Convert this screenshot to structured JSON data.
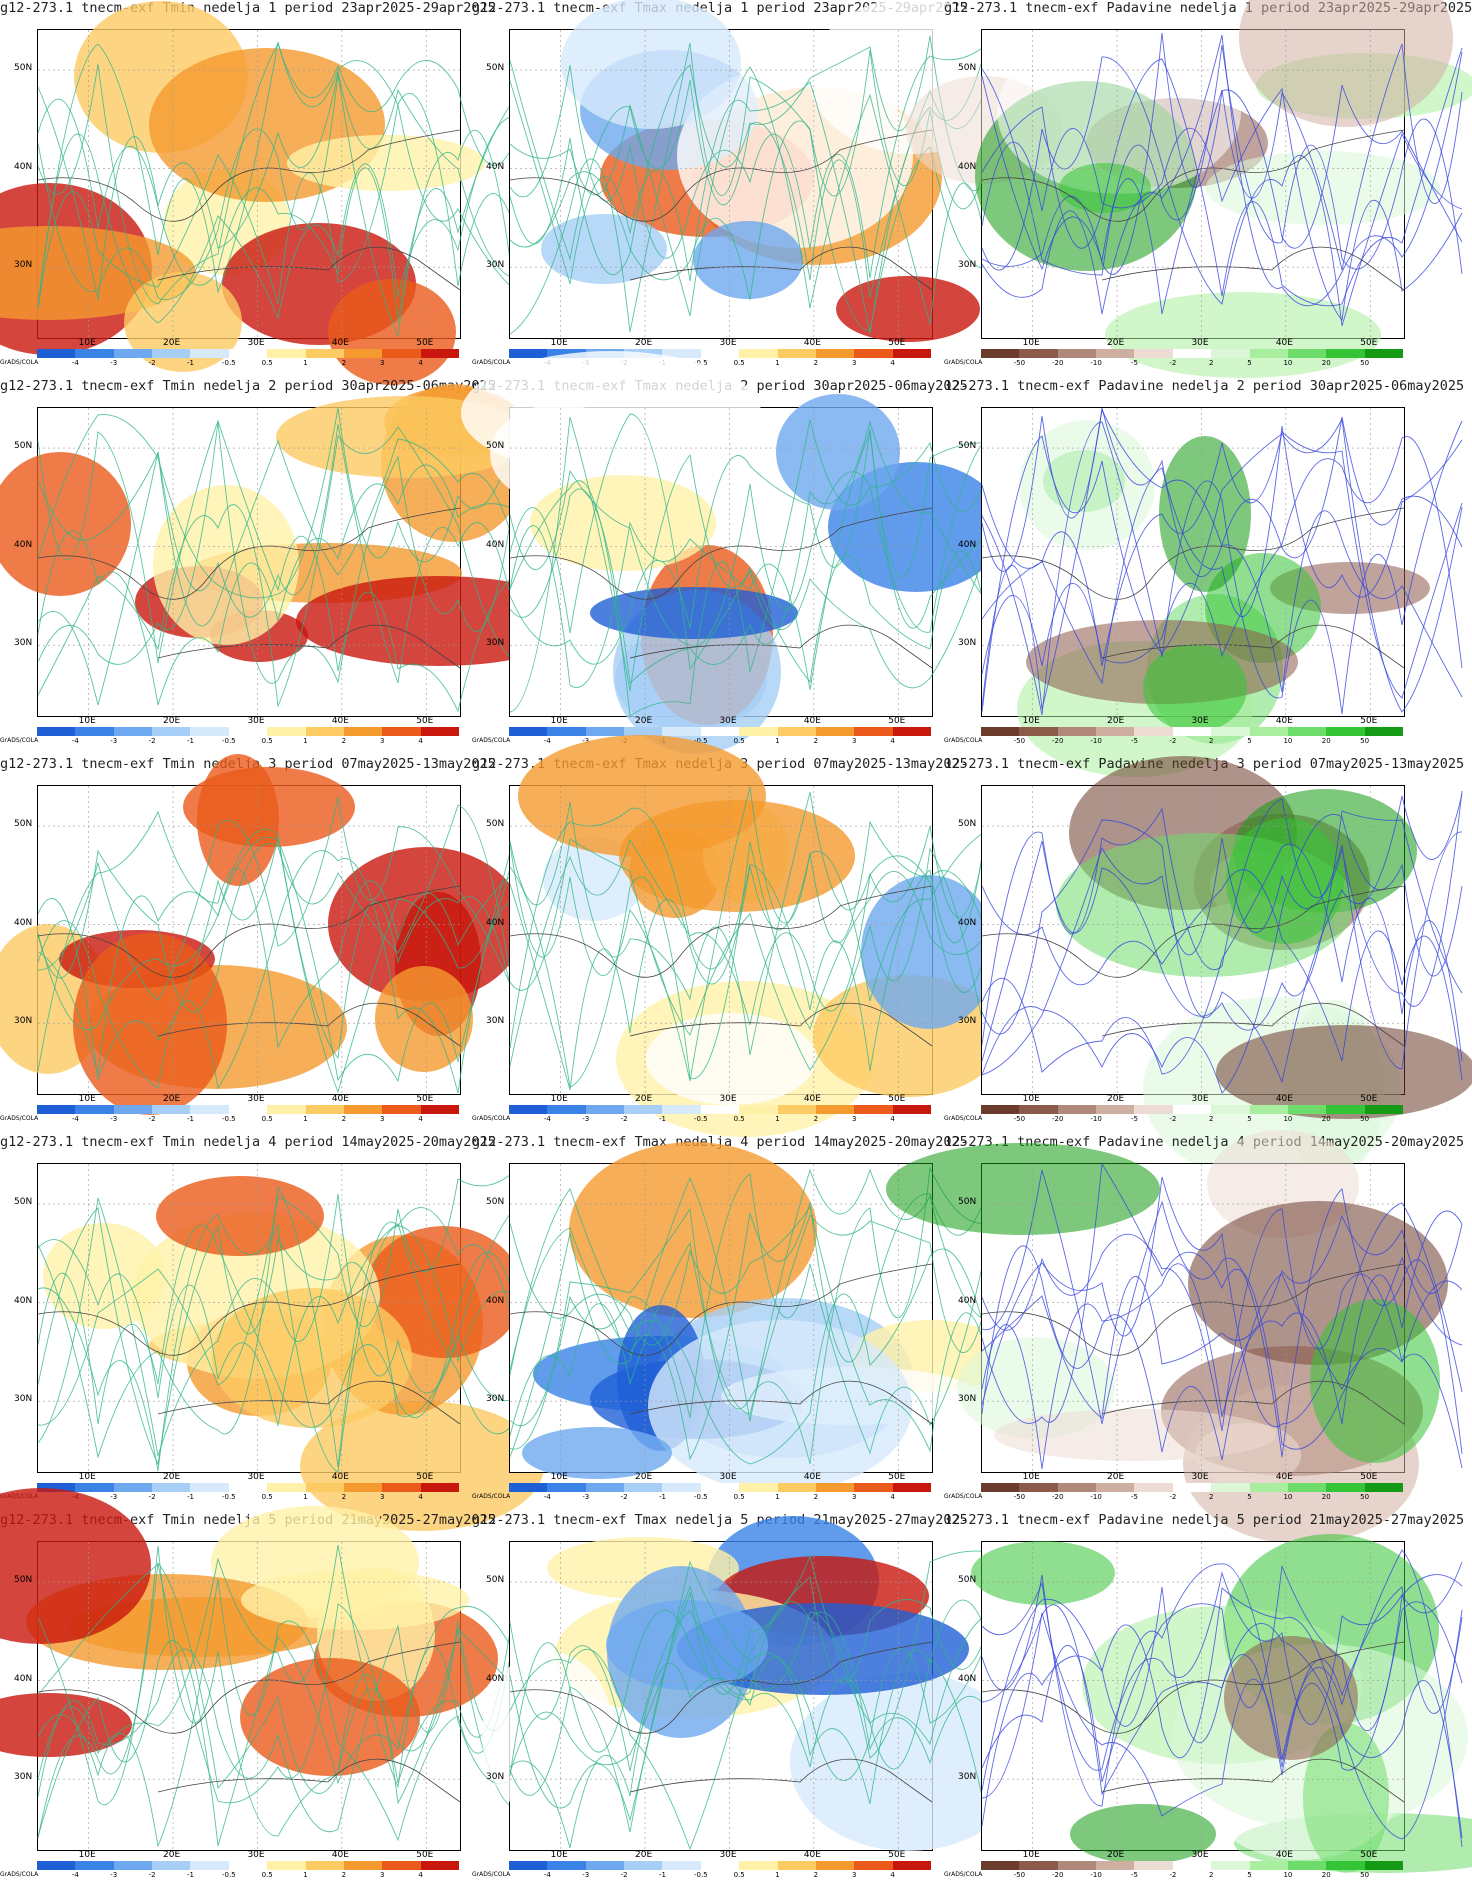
{
  "logo": "GrADS/COLA",
  "latitude_labels": [
    "50N",
    "40N",
    "30N"
  ],
  "longitude_labels": [
    "10E",
    "20E",
    "30E",
    "40E",
    "50E"
  ],
  "temperature_colorbar": {
    "labels": [
      "-4",
      "-3",
      "-2",
      "-1",
      "-0.5",
      "0.5",
      "1",
      "2",
      "3",
      "4"
    ],
    "colors": [
      "#1f5fd6",
      "#3a82e6",
      "#6ea9ef",
      "#a6cef6",
      "#d7eafb",
      "#ffffff",
      "#fff1a8",
      "#fccb63",
      "#f59a2e",
      "#ea5a1a",
      "#c8170d"
    ]
  },
  "precip_colorbar": {
    "labels": [
      "-50",
      "-20",
      "-10",
      "-5",
      "-2",
      "2",
      "5",
      "10",
      "20",
      "50"
    ],
    "colors": [
      "#6b3b2b",
      "#8c5a48",
      "#b08879",
      "#cfaea2",
      "#eddcd4",
      "#ffffff",
      "#dbf7d8",
      "#a9ee9f",
      "#6ddc6a",
      "#35c435",
      "#149a14"
    ]
  },
  "rows": [
    {
      "week": 1,
      "titles": [
        "g12-273.1 tnecm-exf Tmin nedelja 1 period 23apr2025-29apr2025",
        "g12-273.1 tnecm-exf Tmax nedelja 1 period 23apr2025-29apr2025",
        "g12-273.1 tnecm-exf Padavine nedelja 1 period 23apr2025-29apr2025"
      ]
    },
    {
      "week": 2,
      "titles": [
        "g12-273.1 tnecm-exf Tmin nedelja 2 period 30apr2025-06may2025",
        "g12-273.1 tnecm-exf Tmax nedelja 2 period 30apr2025-06may2025",
        "12-273.1 tnecm-exf Padavine nedelja 2 period 30apr2025-06may2025"
      ]
    },
    {
      "week": 3,
      "titles": [
        "g12-273.1 tnecm-exf Tmin nedelja 3 period 07may2025-13may2025",
        "g12-273.1 tnecm-exf Tmax nedelja 3 period 07may2025-13may2025",
        "12-273.1 tnecm-exf Padavine nedelja 3 period 07may2025-13may2025"
      ]
    },
    {
      "week": 4,
      "titles": [
        "g12-273.1 tnecm-exf Tmin nedelja 4 period 14may2025-20may2025",
        "g12-273.1 tnecm-exf Tmax nedelja 4 period 14may2025-20may2025",
        "12-273.1 tnecm-exf Padavine nedelja 4 period 14may2025-20may2025"
      ]
    },
    {
      "week": 5,
      "titles": [
        "g12-273.1 tnecm-exf Tmin nedelja 5 period 21may2025-27may2025",
        "g12-273.1 tnecm-exf Tmax nedelja 5 period 21may2025-27may2025",
        "12-273.1 tnecm-exf Padavine nedelja 5 period 21may2025-27may2025"
      ]
    }
  ]
}
